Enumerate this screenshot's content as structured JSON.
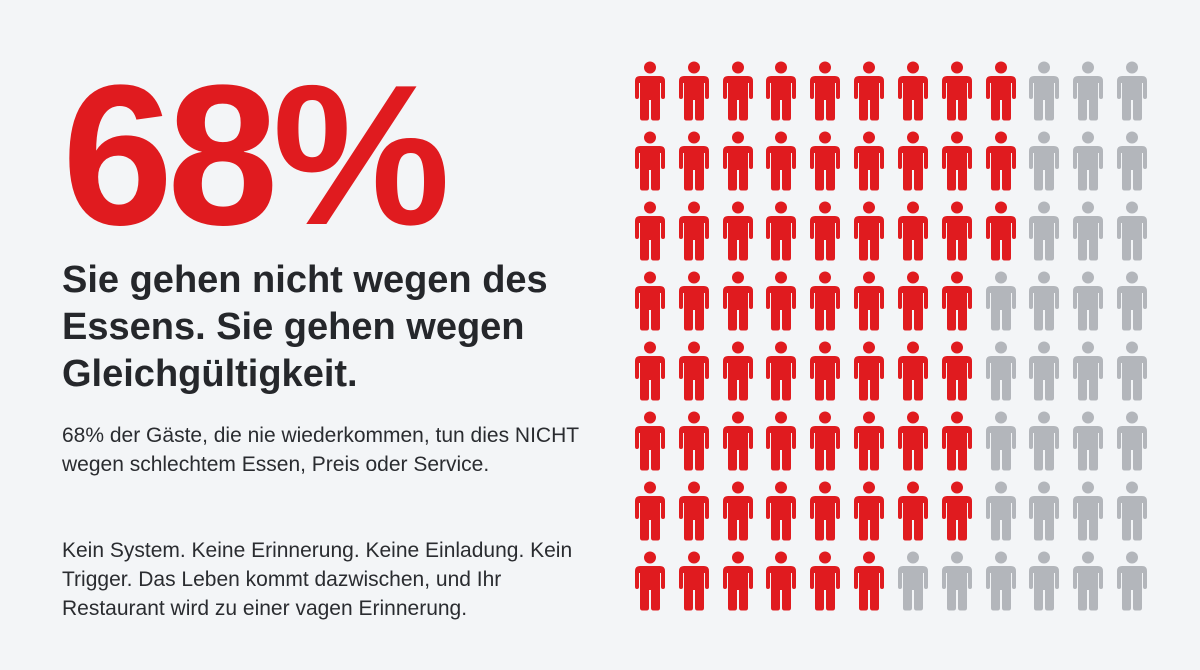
{
  "stat": {
    "value": "68%"
  },
  "headline": "Sie gehen nicht wegen des Essens. Sie gehen wegen Gleichgültigkeit.",
  "paragraphs": [
    "68% der Gäste, die nie wiederkommen, tun dies NICHT wegen schlechtem Essen, Preis oder Service.",
    "Kein System. Keine Erinnerung. Keine Einladung. Kein Trigger. Das Leben kommt dazwischen, und Ihr Restaurant wird zu einer vagen Erinnerung."
  ],
  "pictogram": {
    "icon": "person-icon",
    "rows": 8,
    "columns": 12,
    "highlighted_per_row": [
      9,
      9,
      9,
      8,
      8,
      8,
      8,
      6
    ],
    "colors": {
      "highlighted": "#e01b1f",
      "other": "#b3b6bb"
    }
  }
}
